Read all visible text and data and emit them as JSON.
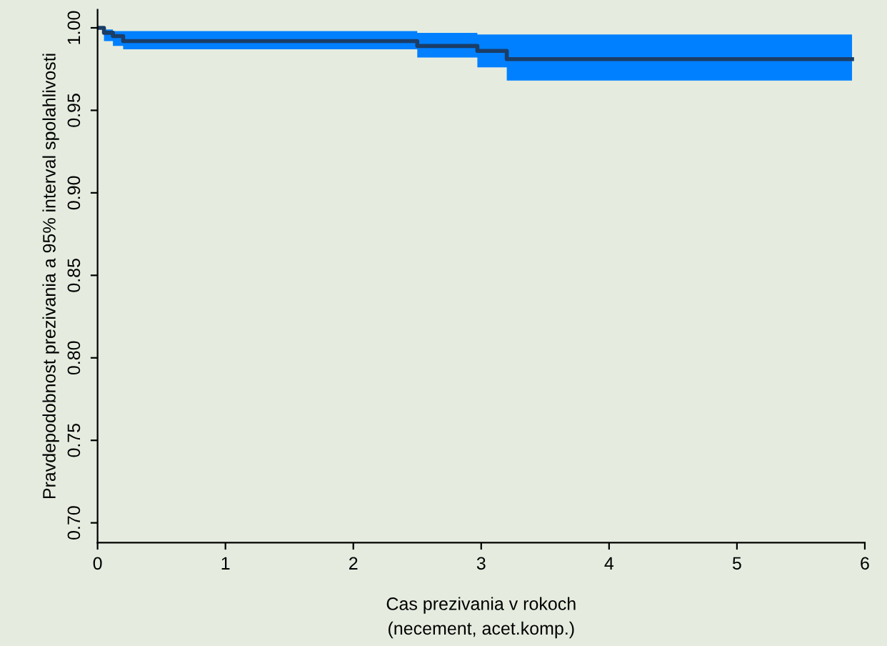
{
  "chart_data": {
    "type": "step",
    "xlabel": "Cas prezivania v rokoch",
    "ylabel": "Pravdepodobnost prezivania a 95% interval spolahlivosti",
    "annotations": [
      "(necement, acet.komp.)"
    ],
    "series": [
      {
        "color": "#1b3d66",
        "x": [
          0,
          0.05,
          0.12,
          0.2,
          2.5,
          2.97,
          3.2,
          5.9
        ],
        "values": [
          1.0,
          0.997,
          0.995,
          0.992,
          0.989,
          0.986,
          0.981,
          0.981
        ],
        "lower": [
          1.0,
          0.992,
          0.989,
          0.987,
          0.982,
          0.976,
          0.968,
          0.968
        ],
        "upper": [
          1.0,
          0.999,
          0.998,
          0.998,
          0.997,
          0.996,
          0.996,
          0.996
        ]
      }
    ],
    "xlim": [
      0,
      6
    ],
    "xticks": [
      0,
      1,
      2,
      3,
      4,
      5,
      6
    ],
    "ylim": [
      0.688,
      1.011
    ],
    "yticks": [
      {
        "value": 0.7,
        "label": "0.70"
      },
      {
        "value": 0.75,
        "label": "0.75"
      },
      {
        "value": 0.8,
        "label": "0.80"
      },
      {
        "value": 0.85,
        "label": "0.85"
      },
      {
        "value": 0.9,
        "label": "0.90"
      },
      {
        "value": 0.95,
        "label": "0.95"
      },
      {
        "value": 1.0,
        "label": "1.00"
      }
    ],
    "grid": false,
    "legend": false
  }
}
